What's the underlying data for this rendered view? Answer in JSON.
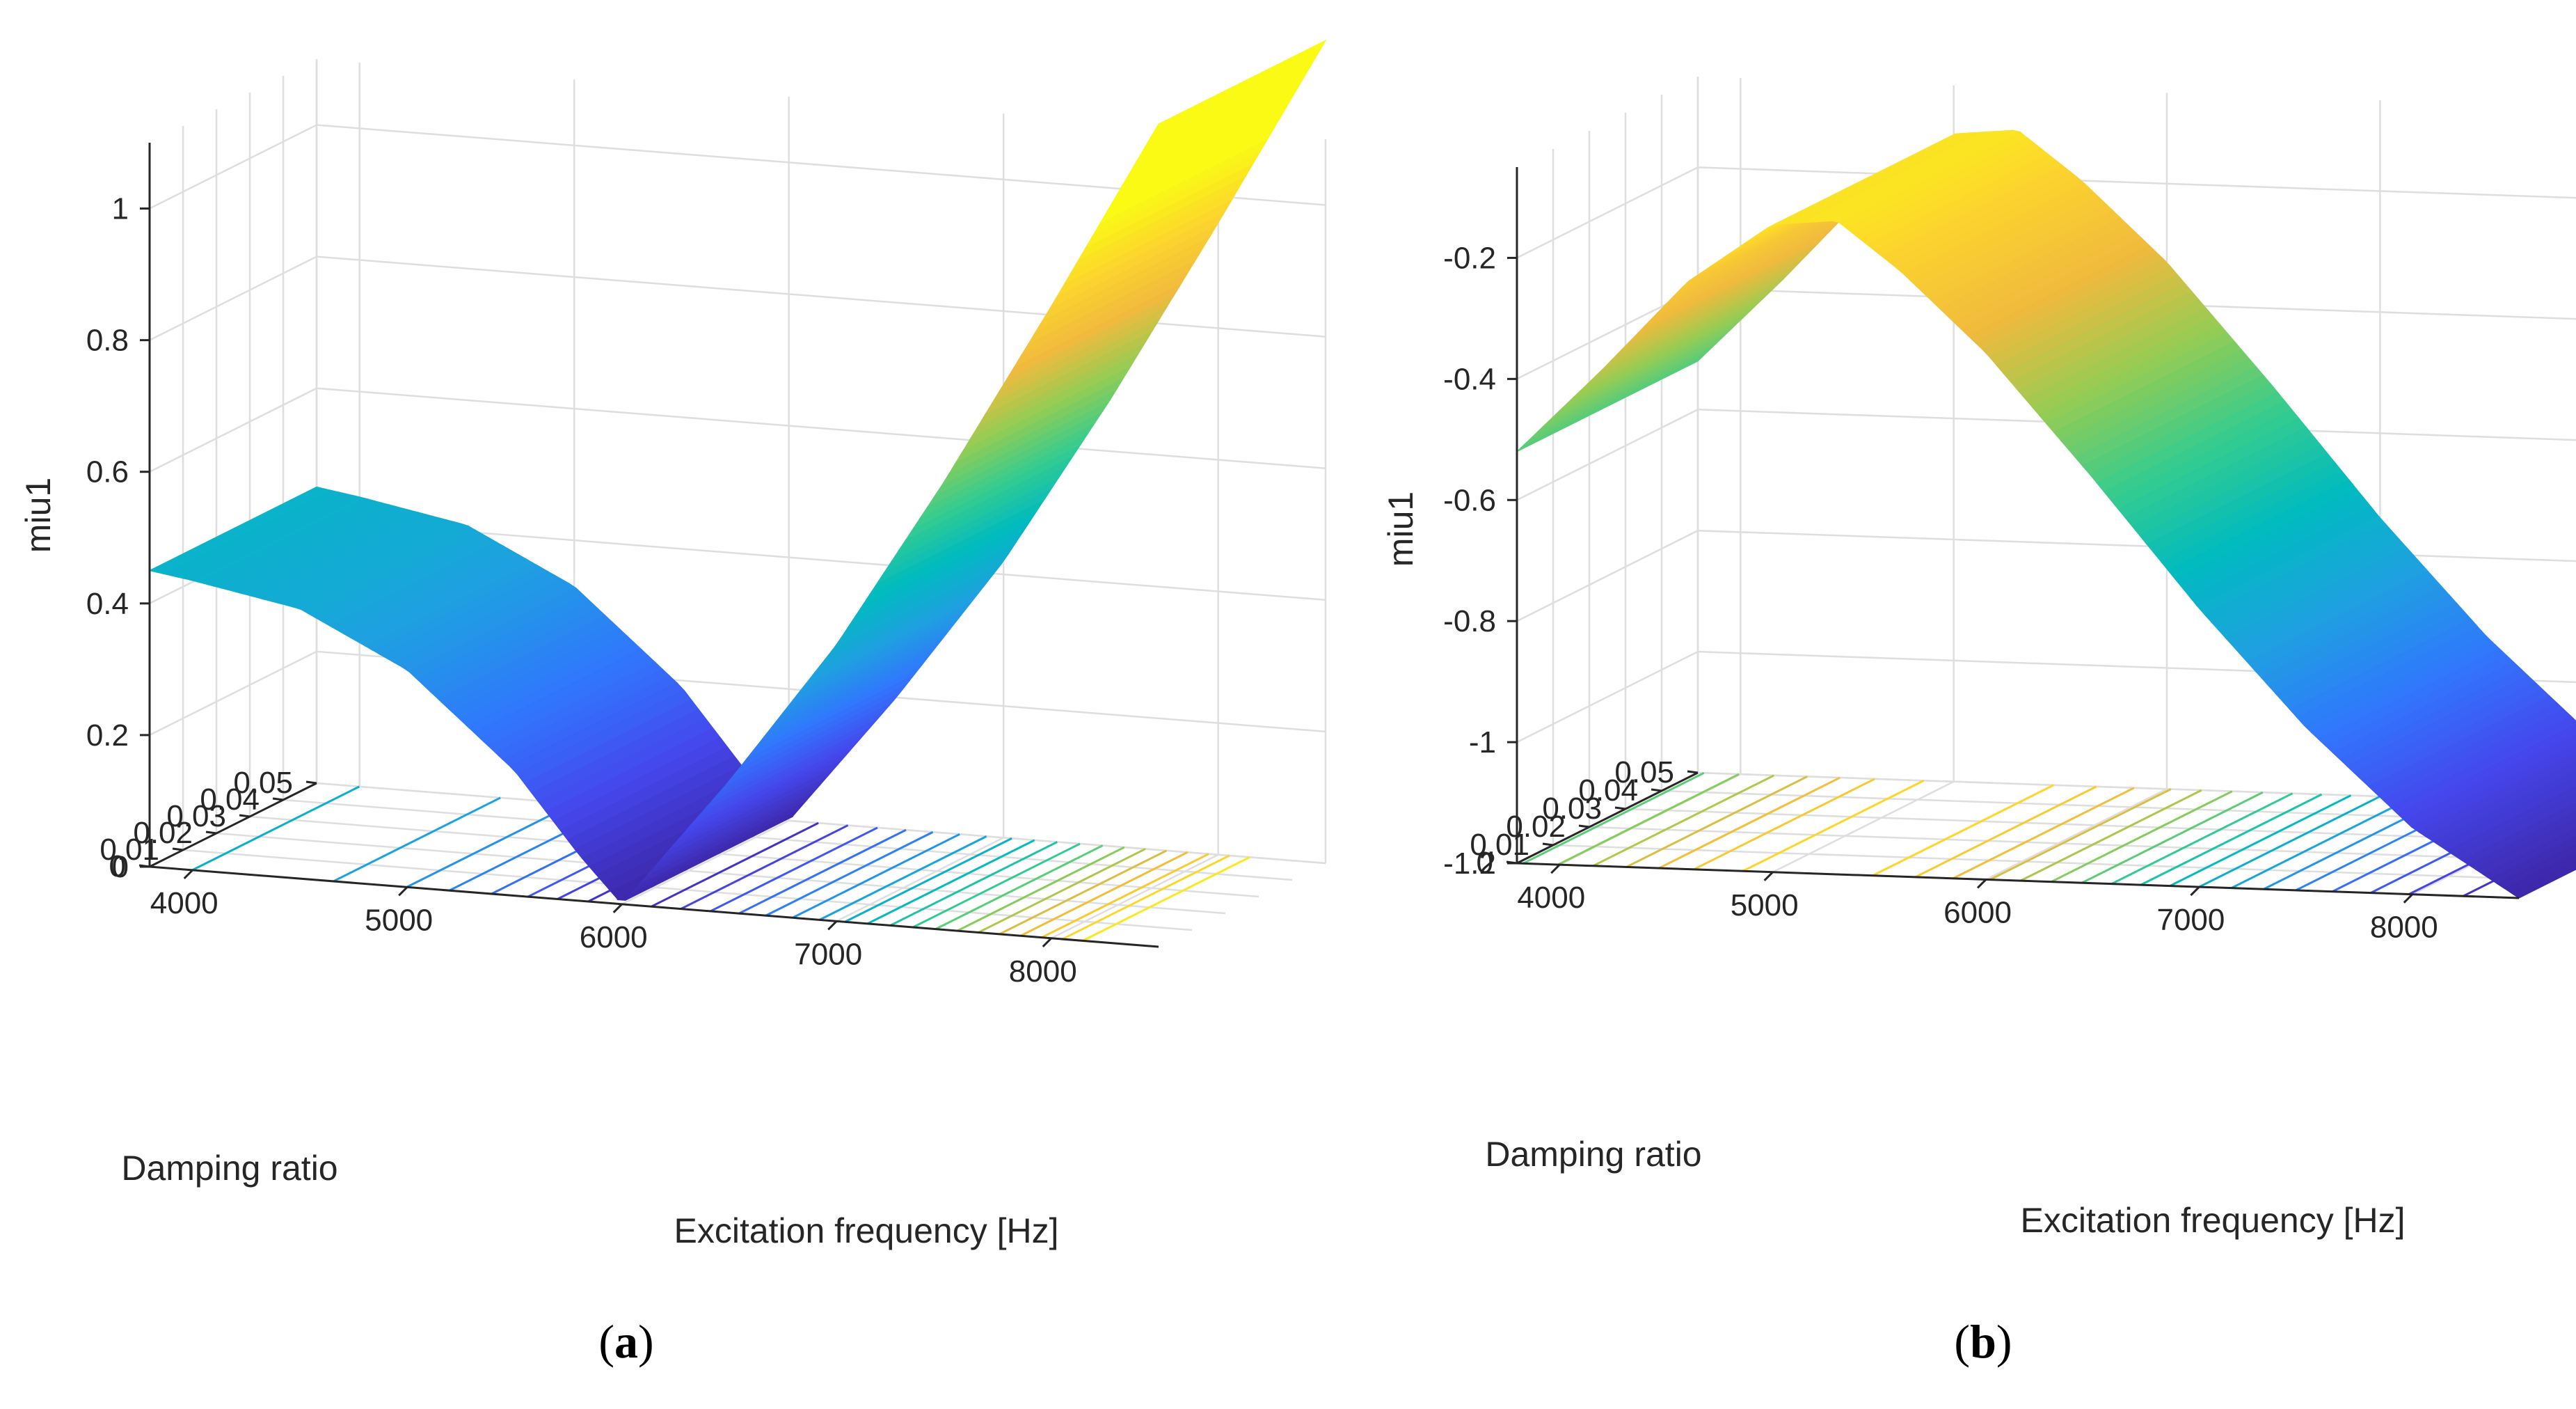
{
  "chart_data": [
    {
      "type": "surface",
      "panel": "a",
      "caption": "a",
      "xlabel": "Excitation frequency [Hz]",
      "ylabel": "Damping ratio",
      "zlabel": "miu1",
      "xlim": [
        3800,
        8500
      ],
      "ylim": [
        0,
        0.05
      ],
      "zlim": [
        0,
        1.1
      ],
      "xticks": [
        4000,
        5000,
        6000,
        7000,
        8000
      ],
      "xtick_labels": [
        "4000",
        "5000",
        "6000",
        "7000",
        "8000"
      ],
      "yticks": [
        0,
        0.01,
        0.02,
        0.03,
        0.04,
        0.05
      ],
      "ytick_labels": [
        "0",
        "0.01",
        "0.02",
        "0.03",
        "0.04",
        "0.05"
      ],
      "zticks": [
        0,
        0.2,
        0.4,
        0.6,
        0.8,
        1
      ],
      "ztick_labels": [
        "0",
        "0.2",
        "0.4",
        "0.6",
        "0.8",
        "1"
      ],
      "colormap": "parula",
      "contour_projection": true,
      "contour_levels": 20,
      "profile_frequency": [
        3800,
        4000,
        4500,
        5000,
        5500,
        5800,
        6000,
        6200,
        6500,
        7000,
        7500,
        8000,
        8500
      ],
      "profile_value": [
        0.45,
        0.44,
        0.41,
        0.33,
        0.19,
        0.07,
        0.0,
        0.08,
        0.2,
        0.42,
        0.68,
        0.96,
        1.25
      ]
    },
    {
      "type": "surface",
      "panel": "b",
      "caption": "b",
      "xlabel": "Excitation frequency [Hz]",
      "ylabel": "Damping ratio",
      "zlabel": "miu1",
      "xlim": [
        3800,
        8500
      ],
      "ylim": [
        0,
        0.05
      ],
      "zlim": [
        -1.2,
        -0.05
      ],
      "xticks": [
        4000,
        5000,
        6000,
        7000,
        8000
      ],
      "xtick_labels": [
        "4000",
        "5000",
        "6000",
        "7000",
        "8000"
      ],
      "yticks": [
        0,
        0.01,
        0.02,
        0.03,
        0.04,
        0.05
      ],
      "ytick_labels": [
        "0",
        "0.01",
        "0.02",
        "0.03",
        "0.04",
        "0.05"
      ],
      "zticks": [
        -1.2,
        -1,
        -0.8,
        -0.6,
        -0.4,
        -0.2
      ],
      "ztick_labels": [
        "-1.2",
        "-1",
        "-0.8",
        "-0.6",
        "-0.4",
        "-0.2"
      ],
      "colormap": "parula",
      "contour_projection": true,
      "contour_levels": 20,
      "profile_frequency": [
        3800,
        4200,
        4600,
        5000,
        5300,
        5600,
        6000,
        6500,
        7000,
        7500,
        8000,
        8500
      ],
      "profile_value": [
        -0.52,
        -0.38,
        -0.23,
        -0.13,
        -0.12,
        -0.2,
        -0.33,
        -0.53,
        -0.74,
        -0.93,
        -1.09,
        -1.2
      ]
    }
  ]
}
